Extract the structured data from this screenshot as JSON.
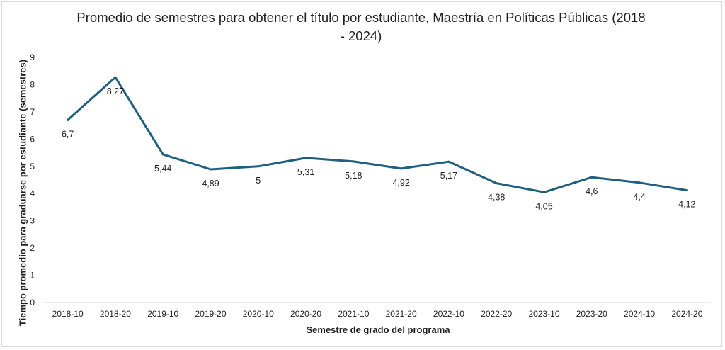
{
  "chart_data": {
    "type": "line",
    "title": "Promedio de semestres para obtener el título por estudiante, Maestría en Políticas Públicas (2018 - 2024)",
    "title_lines": [
      "Promedio de semestres para obtener el título por estudiante, Maestría en Políticas Públicas (2018",
      "- 2024)"
    ],
    "xlabel": "Semestre de grado del programa",
    "ylabel": "Tiempo promedio para graduarse por estudiante (semestres)",
    "categories": [
      "2018-10",
      "2018-20",
      "2019-10",
      "2019-20",
      "2020-10",
      "2020-20",
      "2021-10",
      "2021-20",
      "2022-10",
      "2022-20",
      "2023-10",
      "2023-20",
      "2024-10",
      "2024-20"
    ],
    "values": [
      6.7,
      8.27,
      5.44,
      4.89,
      5,
      5.31,
      5.18,
      4.92,
      5.17,
      4.38,
      4.05,
      4.6,
      4.4,
      4.12
    ],
    "data_labels": [
      "6,7",
      "8,27",
      "5,44",
      "4,89",
      "5",
      "5,31",
      "5,18",
      "4,92",
      "5,17",
      "4,38",
      "4,05",
      "4,6",
      "4,4",
      "4,12"
    ],
    "yticks": [
      "0",
      "1",
      "2",
      "3",
      "4",
      "5",
      "6",
      "7",
      "8",
      "9"
    ],
    "ylim": [
      0,
      9
    ],
    "grid": false,
    "legend": "none",
    "line_color": "#1f5f7f"
  }
}
